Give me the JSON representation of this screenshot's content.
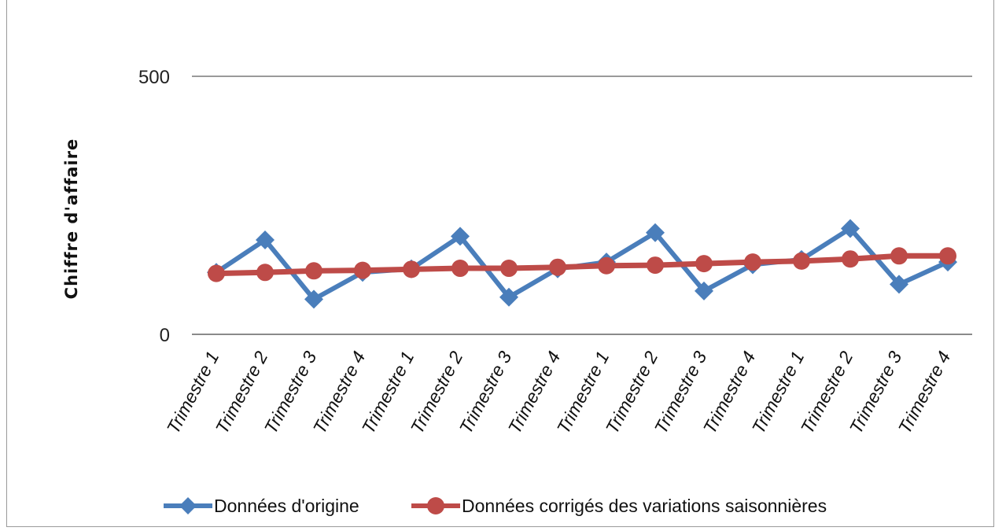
{
  "chart_data": {
    "type": "line",
    "title": "",
    "xlabel": "",
    "ylabel": "Chiffre d'affaire",
    "ylim": [
      0,
      500
    ],
    "yticks": [
      0,
      500
    ],
    "grid": true,
    "legend_position": "bottom",
    "categories": [
      "Trimestre 1",
      "Trimestre 2",
      "Trimestre 3",
      "Trimestre 4",
      "Trimestre 1",
      "Trimestre 2",
      "Trimestre 3",
      "Trimestre 4",
      "Trimestre 1",
      "Trimestre 2",
      "Trimestre 3",
      "Trimestre 4",
      "Trimestre 1",
      "Trimestre 2",
      "Trimestre 3",
      "Trimestre 4"
    ],
    "series": [
      {
        "name": "Données d'origine",
        "color": "#4a7ebb",
        "marker": "diamond",
        "values": [
          120,
          183,
          68,
          120,
          127,
          190,
          72,
          127,
          140,
          197,
          84,
          135,
          145,
          205,
          97,
          140
        ]
      },
      {
        "name": "Données corrigés des variations saisonnières",
        "color": "#be4b48",
        "marker": "circle",
        "values": [
          118,
          120,
          123,
          124,
          126,
          128,
          128,
          130,
          133,
          134,
          137,
          140,
          142,
          146,
          152,
          152
        ]
      }
    ]
  }
}
